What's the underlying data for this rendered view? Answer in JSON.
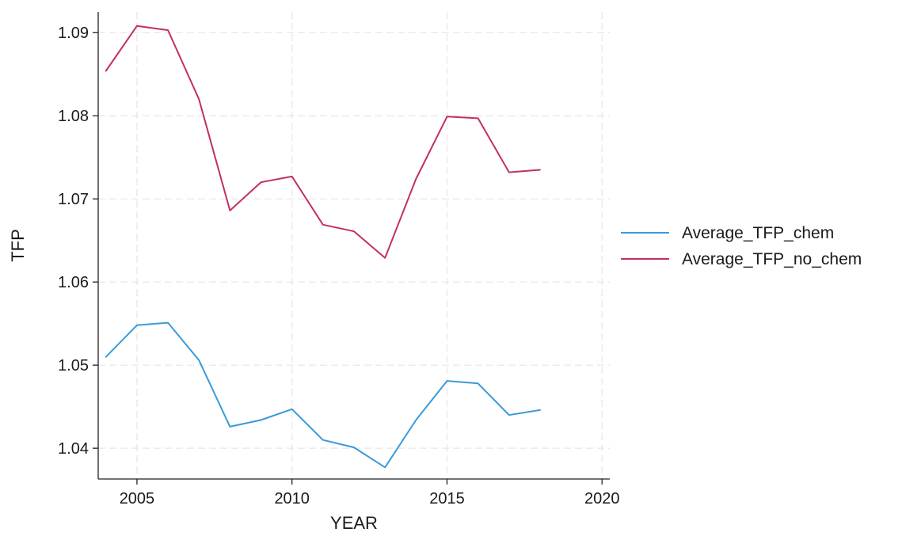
{
  "chart_data": {
    "type": "line",
    "title": "",
    "xlabel": "YEAR",
    "ylabel": "TFP",
    "xlim": [
      2003.75,
      2020.25
    ],
    "ylim": [
      1.0363,
      1.0925
    ],
    "x_ticks": [
      2005,
      2010,
      2015,
      2020
    ],
    "x_tick_labels": [
      "2005",
      "2010",
      "2015",
      "2020"
    ],
    "y_ticks": [
      1.04,
      1.05,
      1.06,
      1.07,
      1.08,
      1.09
    ],
    "y_tick_labels": [
      "1.04",
      "1.05",
      "1.06",
      "1.07",
      "1.08",
      "1.09"
    ],
    "grid": true,
    "legend_position": "right",
    "x": [
      2004,
      2005,
      2006,
      2007,
      2008,
      2009,
      2010,
      2011,
      2012,
      2013,
      2014,
      2015,
      2016,
      2017,
      2018
    ],
    "series": [
      {
        "name": "Average_TFP_chem",
        "color": "#3a9ad9",
        "values": [
          1.051,
          1.0548,
          1.0551,
          1.0506,
          1.0426,
          1.0434,
          1.0447,
          1.041,
          1.0401,
          1.0377,
          1.0434,
          1.0481,
          1.0478,
          1.044,
          1.0446
        ]
      },
      {
        "name": "Average_TFP_no_chem",
        "color": "#c2305e",
        "values": [
          1.0854,
          1.0908,
          1.0903,
          1.082,
          1.0686,
          1.072,
          1.0727,
          1.0669,
          1.0661,
          1.0629,
          1.0724,
          1.0799,
          1.0797,
          1.0732,
          1.0735
        ]
      }
    ]
  }
}
